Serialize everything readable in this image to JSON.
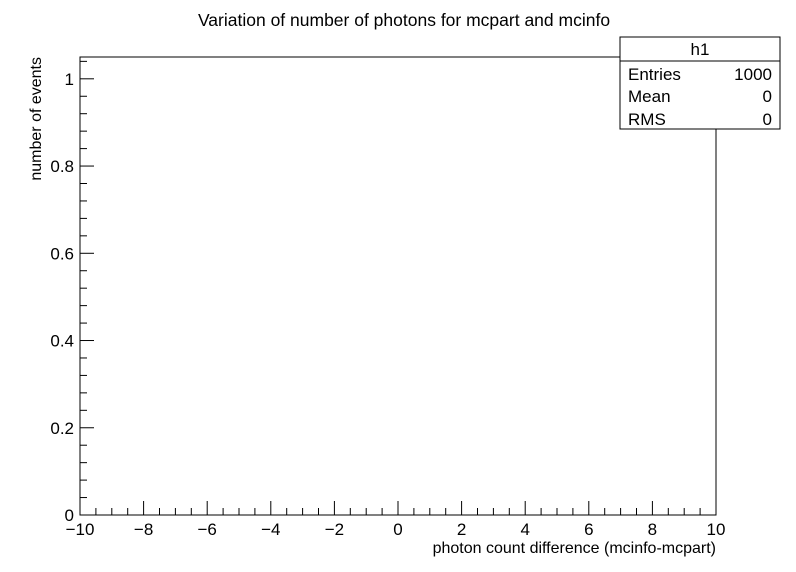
{
  "chart_data": {
    "type": "bar",
    "title": "Variation of number of photons for mcpart and mcinfo",
    "xlabel": "photon count difference (mcinfo-mcpart)",
    "ylabel": "number of events",
    "xlim": [
      -10,
      10
    ],
    "ylim": [
      0,
      1.05
    ],
    "x_ticks": [
      -10,
      -8,
      -6,
      -4,
      -2,
      0,
      2,
      4,
      6,
      8,
      10
    ],
    "x_tick_labels": [
      "−10",
      "−8",
      "−6",
      "−4",
      "−2",
      "0",
      "2",
      "4",
      "6",
      "8",
      "10"
    ],
    "y_ticks": [
      0,
      0.2,
      0.4,
      0.6,
      0.8,
      1
    ],
    "y_tick_labels": [
      "0",
      "0.2",
      "0.4",
      "0.6",
      "0.8",
      "1"
    ],
    "grid": false,
    "series": [],
    "stats_box": {
      "name": "h1",
      "placement": "top-right",
      "rows": [
        {
          "label": "Entries",
          "value": "1000"
        },
        {
          "label": "Mean",
          "value": "0"
        },
        {
          "label": "RMS",
          "value": "0"
        }
      ]
    }
  }
}
